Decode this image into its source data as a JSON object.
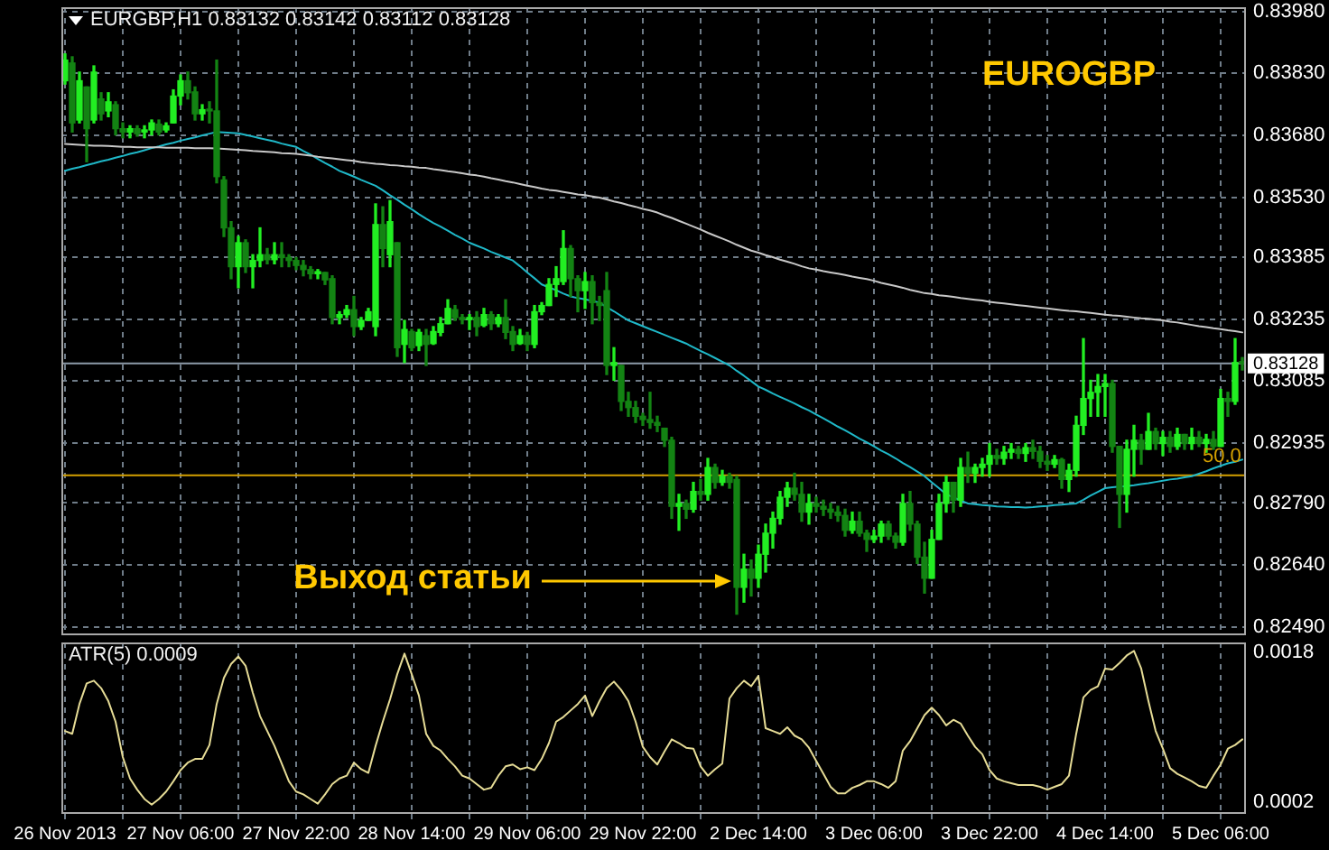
{
  "chart_data": [
    {
      "type": "candlestick",
      "title": "EURGBP,H1 0.83132 0.83142 0.83112 0.83128",
      "colors": [
        "#22ee22",
        "#138313",
        "#22ee22",
        "#138313",
        "#22ee22",
        "#138313",
        "#22ee22",
        "#138313",
        "#138313",
        "#22ee22",
        "#138313",
        "#22ee22",
        "#22ee22",
        "#138313",
        "#22ee22",
        "#22ee22",
        "#22ee22",
        "#138313",
        "#138313",
        "#22ee22",
        "#138313",
        "#138313",
        "#138313",
        "#138313",
        "#22ee22",
        "#138313",
        "#22ee22",
        "#22ee22",
        "#138313",
        "#22ee22",
        "#138313",
        "#138313",
        "#138313",
        "#138313",
        "#138313",
        "#22ee22",
        "#138313",
        "#138313",
        "#22ee22",
        "#22ee22",
        "#138313",
        "#22ee22",
        "#22ee22",
        "#22ee22",
        "#138313",
        "#22ee22",
        "#138313",
        "#22ee22",
        "#138313",
        "#22ee22",
        "#138313",
        "#22ee22",
        "#22ee22",
        "#22ee22",
        "#138313",
        "#138313",
        "#22ee22",
        "#138313",
        "#22ee22",
        "#138313",
        "#22ee22",
        "#138313",
        "#138313",
        "#22ee22",
        "#138313",
        "#22ee22",
        "#22ee22",
        "#22ee22",
        "#22ee22",
        "#22ee22",
        "#138313",
        "#138313",
        "#22ee22",
        "#138313",
        "#138313",
        "#138313",
        "#22ee22",
        "#138313",
        "#138313",
        "#138313",
        "#138313",
        "#138313",
        "#138313",
        "#138313",
        "#138313",
        "#22ee22",
        "#138313",
        "#22ee22",
        "#138313",
        "#22ee22",
        "#138313",
        "#22ee22",
        "#138313",
        "#138313",
        "#22ee22",
        "#138313",
        "#22ee22",
        "#22ee22",
        "#22ee22",
        "#22ee22",
        "#22ee22",
        "#138313",
        "#138313",
        "#22ee22",
        "#138313",
        "#138313",
        "#138313",
        "#138313",
        "#138313",
        "#22ee22",
        "#138313",
        "#138313",
        "#22ee22",
        "#22ee22",
        "#138313",
        "#138313",
        "#22ee22",
        "#138313",
        "#138313",
        "#138313",
        "#22ee22",
        "#22ee22",
        "#22ee22",
        "#138313",
        "#22ee22",
        "#138313",
        "#22ee22",
        "#22ee22",
        "#22ee22",
        "#138313",
        "#22ee22",
        "#22ee22",
        "#138313",
        "#22ee22",
        "#138313",
        "#138313",
        "#138313",
        "#22ee22",
        "#138313",
        "#22ee22",
        "#22ee22",
        "#22ee22",
        "#22ee22",
        "#22ee22",
        "#22ee22",
        "#138313",
        "#138313",
        "#22ee22",
        "#22ee22",
        "#138313",
        "#22ee22",
        "#138313",
        "#22ee22",
        "#138313",
        "#22ee22",
        "#138313",
        "#22ee22",
        "#138313",
        "#22ee22",
        "#138313",
        "#22ee22",
        "#138313",
        "#22ee22",
        "#138313"
      ],
      "categories": [
        null,
        null,
        null,
        null,
        null,
        null,
        null,
        null,
        null,
        null,
        null,
        null,
        null,
        null,
        null,
        null,
        null,
        null,
        null,
        null,
        null,
        null,
        null,
        null,
        null,
        null,
        null,
        null,
        null,
        null,
        null,
        null,
        null,
        null,
        null,
        null,
        null,
        null,
        null,
        null,
        null,
        null,
        null,
        null,
        null,
        null,
        null,
        null,
        null,
        null,
        null,
        null,
        null,
        null,
        null,
        null,
        null,
        null,
        null,
        null,
        null,
        null,
        null,
        null,
        null,
        null,
        null,
        null,
        null,
        null,
        null,
        null,
        null,
        null,
        null,
        null,
        null,
        null,
        null,
        null,
        null,
        null,
        null,
        null,
        null,
        null,
        null,
        null,
        null,
        null,
        null,
        null,
        null,
        null,
        null,
        null,
        null,
        null,
        null,
        null,
        null,
        null,
        null,
        null,
        null,
        null,
        null,
        null,
        null,
        null,
        null,
        null,
        null,
        null,
        null,
        null,
        null,
        null,
        null,
        null,
        null,
        null,
        null,
        null,
        null,
        null,
        null,
        null,
        null,
        null,
        null,
        null,
        null,
        null,
        null,
        null,
        null,
        null,
        null,
        null,
        null,
        null,
        null,
        null,
        null,
        null,
        null,
        null,
        null,
        null,
        null,
        null,
        null,
        null,
        null,
        null,
        null,
        null,
        null,
        null,
        null,
        null,
        null,
        null
      ],
      "ohlc": [
        [
          0.83812,
          0.83877,
          0.83804,
          0.83862
        ],
        [
          0.83855,
          0.8387,
          0.83688,
          0.8371
        ],
        [
          0.83717,
          0.83833,
          0.8371,
          0.83812
        ],
        [
          0.83797,
          0.83797,
          0.83616,
          0.83696
        ],
        [
          0.83717,
          0.83848,
          0.8371,
          0.83833
        ],
        [
          0.83768,
          0.83783,
          0.83717,
          0.83732
        ],
        [
          0.83739,
          0.83783,
          0.83725,
          0.83761
        ],
        [
          0.83754,
          0.83761,
          0.83681,
          0.83696
        ],
        [
          0.83696,
          0.8371,
          0.83674,
          0.83688
        ],
        [
          0.83688,
          0.83703,
          0.83674,
          0.83696
        ],
        [
          0.83696,
          0.83703,
          0.83678,
          0.83684
        ],
        [
          0.83688,
          0.83703,
          0.83674,
          0.83693
        ],
        [
          0.83693,
          0.83717,
          0.83681,
          0.8371
        ],
        [
          0.83707,
          0.83717,
          0.83681,
          0.83688
        ],
        [
          0.83693,
          0.8371,
          0.83688,
          0.83703
        ],
        [
          0.8371,
          0.8379,
          0.8371,
          0.83775
        ],
        [
          0.83775,
          0.83826,
          0.83754,
          0.83812
        ],
        [
          0.83812,
          0.83833,
          0.83768,
          0.83783
        ],
        [
          0.83785,
          0.83797,
          0.83717,
          0.83732
        ],
        [
          0.83732,
          0.83754,
          0.83717,
          0.83742
        ],
        [
          0.83742,
          0.83761,
          0.8371,
          0.83739
        ],
        [
          0.83739,
          0.83862,
          0.83565,
          0.8358
        ],
        [
          0.83572,
          0.8358,
          0.83435,
          0.83456
        ],
        [
          0.83456,
          0.83471,
          0.83333,
          0.83362
        ],
        [
          0.83362,
          0.83435,
          0.83311,
          0.8342
        ],
        [
          0.8342,
          0.83427,
          0.83348,
          0.83362
        ],
        [
          0.83362,
          0.83391,
          0.83311,
          0.83377
        ],
        [
          0.83377,
          0.83456,
          0.83362,
          0.83391
        ],
        [
          0.83391,
          0.83406,
          0.83369,
          0.83379
        ],
        [
          0.83379,
          0.8342,
          0.83369,
          0.83391
        ],
        [
          0.83391,
          0.8342,
          0.83362,
          0.83384
        ],
        [
          0.83384,
          0.83391,
          0.83362,
          0.83377
        ],
        [
          0.83377,
          0.83384,
          0.83355,
          0.83365
        ],
        [
          0.83365,
          0.83377,
          0.8334,
          0.83355
        ],
        [
          0.83355,
          0.83362,
          0.83333,
          0.83345
        ],
        [
          0.83345,
          0.83355,
          0.83333,
          0.8335
        ],
        [
          0.83348,
          0.83348,
          0.83319,
          0.8333
        ],
        [
          0.83333,
          0.8334,
          0.83224,
          0.83239
        ],
        [
          0.83239,
          0.83253,
          0.83224,
          0.83246
        ],
        [
          0.83246,
          0.83268,
          0.83239,
          0.83258
        ],
        [
          0.83258,
          0.8329,
          0.83195,
          0.83217
        ],
        [
          0.83217,
          0.83239,
          0.8321,
          0.83232
        ],
        [
          0.83232,
          0.83261,
          0.83232,
          0.83253
        ],
        [
          0.83217,
          0.83514,
          0.83195,
          0.83464
        ],
        [
          0.83464,
          0.83507,
          0.83362,
          0.83406
        ],
        [
          0.83391,
          0.83522,
          0.83362,
          0.83471
        ],
        [
          0.8342,
          0.8342,
          0.83145,
          0.83166
        ],
        [
          0.83174,
          0.83232,
          0.8313,
          0.8321
        ],
        [
          0.83205,
          0.8321,
          0.83159,
          0.83166
        ],
        [
          0.83171,
          0.8321,
          0.83159,
          0.83203
        ],
        [
          0.83195,
          0.8321,
          0.83123,
          0.83174
        ],
        [
          0.83176,
          0.83217,
          0.83174,
          0.83205
        ],
        [
          0.83203,
          0.83239,
          0.83195,
          0.83224
        ],
        [
          0.83224,
          0.83282,
          0.83224,
          0.83261
        ],
        [
          0.83258,
          0.83268,
          0.83232,
          0.83239
        ],
        [
          0.83239,
          0.83246,
          0.83224,
          0.83234
        ],
        [
          0.83234,
          0.83246,
          0.8321,
          0.83239
        ],
        [
          0.83239,
          0.83253,
          0.83195,
          0.83217
        ],
        [
          0.8322,
          0.83261,
          0.83217,
          0.83246
        ],
        [
          0.83246,
          0.83253,
          0.8321,
          0.83224
        ],
        [
          0.83224,
          0.83246,
          0.83217,
          0.83239
        ],
        [
          0.83239,
          0.83282,
          0.83188,
          0.83203
        ],
        [
          0.83205,
          0.83217,
          0.83159,
          0.83174
        ],
        [
          0.83176,
          0.8321,
          0.83174,
          0.83195
        ],
        [
          0.83195,
          0.83203,
          0.83159,
          0.83174
        ],
        [
          0.83174,
          0.83268,
          0.83166,
          0.83253
        ],
        [
          0.83253,
          0.83275,
          0.83246,
          0.83268
        ],
        [
          0.83268,
          0.83333,
          0.83268,
          0.83319
        ],
        [
          0.83319,
          0.83362,
          0.8329,
          0.83333
        ],
        [
          0.83326,
          0.83449,
          0.83319,
          0.83406
        ],
        [
          0.83406,
          0.83413,
          0.8329,
          0.83333
        ],
        [
          0.83333,
          0.8334,
          0.83253,
          0.83304
        ],
        [
          0.83304,
          0.83348,
          0.83261,
          0.83326
        ],
        [
          0.83326,
          0.8334,
          0.83224,
          0.83275
        ],
        [
          0.83275,
          0.8329,
          0.83232,
          0.83268
        ],
        [
          0.83304,
          0.83348,
          0.83101,
          0.83123
        ],
        [
          0.83123,
          0.83166,
          0.83087,
          0.8313
        ],
        [
          0.83123,
          0.83123,
          0.83014,
          0.83036
        ],
        [
          0.83036,
          0.83058,
          0.83,
          0.83021
        ],
        [
          0.83021,
          0.83036,
          0.82985,
          0.83
        ],
        [
          0.83,
          0.83007,
          0.82978,
          0.82992
        ],
        [
          0.82992,
          0.83058,
          0.82971,
          0.82985
        ],
        [
          0.82985,
          0.83,
          0.82963,
          0.82978
        ],
        [
          0.82971,
          0.82971,
          0.82927,
          0.82942
        ],
        [
          0.82942,
          0.82949,
          0.82753,
          0.82782
        ],
        [
          0.82782,
          0.82811,
          0.82724,
          0.82789
        ],
        [
          0.82789,
          0.82797,
          0.82753,
          0.82775
        ],
        [
          0.82775,
          0.8284,
          0.82768,
          0.82818
        ],
        [
          0.82818,
          0.82847,
          0.82797,
          0.82811
        ],
        [
          0.82811,
          0.82898,
          0.82797,
          0.82876
        ],
        [
          0.82876,
          0.82884,
          0.82826,
          0.8284
        ],
        [
          0.8284,
          0.82869,
          0.82833,
          0.82855
        ],
        [
          0.82855,
          0.82862,
          0.82826,
          0.8284
        ],
        [
          0.82847,
          0.82855,
          0.82521,
          0.82586
        ],
        [
          0.82586,
          0.82666,
          0.8255,
          0.8263
        ],
        [
          0.8263,
          0.82652,
          0.82565,
          0.82608
        ],
        [
          0.82608,
          0.82688,
          0.82586,
          0.82666
        ],
        [
          0.82666,
          0.82739,
          0.82623,
          0.82717
        ],
        [
          0.82717,
          0.82768,
          0.82681,
          0.82753
        ],
        [
          0.82753,
          0.82818,
          0.82739,
          0.82804
        ],
        [
          0.82804,
          0.8284,
          0.82782,
          0.82826
        ],
        [
          0.82826,
          0.82862,
          0.82797,
          0.82811
        ],
        [
          0.82811,
          0.8284,
          0.82746,
          0.82768
        ],
        [
          0.82768,
          0.82811,
          0.82739,
          0.82789
        ],
        [
          0.82789,
          0.82804,
          0.82768,
          0.82782
        ],
        [
          0.82782,
          0.82797,
          0.8276,
          0.82775
        ],
        [
          0.82775,
          0.82789,
          0.82753,
          0.82768
        ],
        [
          0.82768,
          0.82782,
          0.82746,
          0.8276
        ],
        [
          0.8276,
          0.82775,
          0.8271,
          0.82724
        ],
        [
          0.82724,
          0.82768,
          0.82717,
          0.82746
        ],
        [
          0.82746,
          0.82768,
          0.8271,
          0.82717
        ],
        [
          0.82717,
          0.82724,
          0.82673,
          0.82702
        ],
        [
          0.82702,
          0.82724,
          0.82695,
          0.8271
        ],
        [
          0.8271,
          0.82746,
          0.82695,
          0.82739
        ],
        [
          0.82739,
          0.82746,
          0.82702,
          0.8271
        ],
        [
          0.8271,
          0.82717,
          0.82681,
          0.82695
        ],
        [
          0.82695,
          0.82811,
          0.82688,
          0.82789
        ],
        [
          0.82789,
          0.82818,
          0.82724,
          0.82739
        ],
        [
          0.82739,
          0.82746,
          0.82644,
          0.82659
        ],
        [
          0.82659,
          0.82695,
          0.82572,
          0.82608
        ],
        [
          0.82608,
          0.82724,
          0.82608,
          0.82702
        ],
        [
          0.82702,
          0.82811,
          0.82702,
          0.82789
        ],
        [
          0.82789,
          0.82855,
          0.82768,
          0.8284
        ],
        [
          0.8284,
          0.8284,
          0.82768,
          0.82797
        ],
        [
          0.82797,
          0.82898,
          0.82782,
          0.82876
        ],
        [
          0.82876,
          0.82913,
          0.8284,
          0.82862
        ],
        [
          0.82862,
          0.82884,
          0.8284,
          0.82876
        ],
        [
          0.82876,
          0.82898,
          0.82855,
          0.82884
        ],
        [
          0.82884,
          0.82934,
          0.82855,
          0.82905
        ],
        [
          0.82905,
          0.8292,
          0.82884,
          0.82898
        ],
        [
          0.82898,
          0.82927,
          0.82884,
          0.82913
        ],
        [
          0.82913,
          0.82934,
          0.82898,
          0.8292
        ],
        [
          0.8292,
          0.82927,
          0.82898,
          0.8291
        ],
        [
          0.8291,
          0.82934,
          0.82891,
          0.82924
        ],
        [
          0.82924,
          0.82942,
          0.82898,
          0.82915
        ],
        [
          0.82915,
          0.82927,
          0.82876,
          0.82891
        ],
        [
          0.82891,
          0.82905,
          0.82869,
          0.82884
        ],
        [
          0.82884,
          0.82905,
          0.82876,
          0.82895
        ],
        [
          0.82895,
          0.82898,
          0.82826,
          0.82847
        ],
        [
          0.82847,
          0.82884,
          0.82818,
          0.82869
        ],
        [
          0.82869,
          0.83,
          0.82855,
          0.82978
        ],
        [
          0.82978,
          0.83188,
          0.82956,
          0.83043
        ],
        [
          0.83043,
          0.83087,
          0.83,
          0.83058
        ],
        [
          0.83058,
          0.83101,
          0.83,
          0.83072
        ],
        [
          0.83072,
          0.83101,
          0.83,
          0.83079
        ],
        [
          0.83079,
          0.83087,
          0.82913,
          0.82927
        ],
        [
          0.82927,
          0.82927,
          0.82731,
          0.82811
        ],
        [
          0.82811,
          0.82942,
          0.82768,
          0.8292
        ],
        [
          0.8292,
          0.82978,
          0.82855,
          0.82942
        ],
        [
          0.82942,
          0.82956,
          0.82884,
          0.8292
        ],
        [
          0.8292,
          0.83007,
          0.8292,
          0.82963
        ],
        [
          0.82963,
          0.82971,
          0.8292,
          0.82934
        ],
        [
          0.82934,
          0.82963,
          0.82905,
          0.82949
        ],
        [
          0.82949,
          0.82963,
          0.82913,
          0.82927
        ],
        [
          0.82927,
          0.82971,
          0.8292,
          0.82956
        ],
        [
          0.82956,
          0.82956,
          0.8292,
          0.82934
        ],
        [
          0.82934,
          0.82971,
          0.8292,
          0.82949
        ],
        [
          0.82949,
          0.82963,
          0.82927,
          0.82934
        ],
        [
          0.82934,
          0.82956,
          0.82913,
          0.82944
        ],
        [
          0.82944,
          0.82963,
          0.8292,
          0.82927
        ],
        [
          0.82927,
          0.83065,
          0.82927,
          0.83043
        ],
        [
          0.83043,
          0.83058,
          0.83,
          0.83036
        ],
        [
          0.83036,
          0.83188,
          0.83029,
          0.8313
        ],
        [
          0.83132,
          0.83142,
          0.83112,
          0.83128
        ]
      ],
      "series": [
        {
          "type": "line",
          "color": "#c8c8c8",
          "values": [
            0.83659,
            0.83658,
            0.83657,
            0.83656,
            0.83655,
            0.83655,
            0.83654,
            0.83653,
            0.83652,
            0.83652,
            0.83651,
            0.83651,
            0.83651,
            0.83651,
            0.8365,
            0.8365,
            0.8365,
            0.8365,
            0.83649,
            0.83649,
            0.83649,
            0.83648,
            0.83647,
            0.83646,
            0.83645,
            0.83644,
            0.83642,
            0.83641,
            0.8364,
            0.83639,
            0.83637,
            0.83636,
            0.83635,
            0.83633,
            0.83631,
            0.83628,
            0.83626,
            0.83624,
            0.83622,
            0.8362,
            0.83618,
            0.83615,
            0.83613,
            0.83611,
            0.8361,
            0.83608,
            0.83607,
            0.83605,
            0.83604,
            0.83602,
            0.83601,
            0.83598,
            0.83596,
            0.83593,
            0.83591,
            0.83588,
            0.83585,
            0.83583,
            0.8358,
            0.83576,
            0.83573,
            0.83569,
            0.83566,
            0.83562,
            0.83558,
            0.83555,
            0.83551,
            0.83548,
            0.83546,
            0.83543,
            0.8354,
            0.83537,
            0.83535,
            0.83532,
            0.83529,
            0.83525,
            0.8352,
            0.83516,
            0.83511,
            0.83507,
            0.83502,
            0.83498,
            0.83493,
            0.83486,
            0.8348,
            0.83473,
            0.83466,
            0.83459,
            0.83452,
            0.83444,
            0.83437,
            0.8343,
            0.83423,
            0.83415,
            0.83408,
            0.83401,
            0.83396,
            0.8339,
            0.83385,
            0.83379,
            0.83374,
            0.83369,
            0.83363,
            0.83358,
            0.83355,
            0.83351,
            0.83348,
            0.83345,
            0.83342,
            0.83338,
            0.83335,
            0.83332,
            0.83328,
            0.83323,
            0.83319,
            0.83315,
            0.83311,
            0.83306,
            0.83302,
            0.83298,
            0.83296,
            0.83293,
            0.83291,
            0.83289,
            0.83286,
            0.83284,
            0.83282,
            0.8328,
            0.83277,
            0.83275,
            0.83273,
            0.83271,
            0.83269,
            0.83267,
            0.83265,
            0.83263,
            0.83261,
            0.83259,
            0.83257,
            0.83255,
            0.83254,
            0.83252,
            0.8325,
            0.83248,
            0.83246,
            0.83244,
            0.83243,
            0.83241,
            0.83239,
            0.83237,
            0.83236,
            0.83234,
            0.83232,
            0.83229,
            0.83227,
            0.83224,
            0.83221,
            0.83218,
            0.83216,
            0.83213,
            0.83211,
            0.83208,
            0.83206,
            0.83203
          ]
        },
        {
          "type": "line",
          "color": "#1fb8c8",
          "values": [
            0.83594,
            0.83599,
            0.83603,
            0.83608,
            0.83612,
            0.83617,
            0.83621,
            0.83626,
            0.8363,
            0.83635,
            0.83639,
            0.83644,
            0.83649,
            0.83653,
            0.83658,
            0.83662,
            0.83667,
            0.83671,
            0.83675,
            0.8368,
            0.83684,
            0.83688,
            0.83687,
            0.83686,
            0.83685,
            0.83681,
            0.83677,
            0.83673,
            0.83669,
            0.83665,
            0.8366,
            0.83656,
            0.83652,
            0.83642,
            0.83633,
            0.83623,
            0.83613,
            0.83604,
            0.83594,
            0.83587,
            0.8358,
            0.83572,
            0.83565,
            0.83558,
            0.83547,
            0.83535,
            0.83524,
            0.83512,
            0.83501,
            0.83489,
            0.83478,
            0.83468,
            0.83459,
            0.83449,
            0.83439,
            0.8343,
            0.8342,
            0.83413,
            0.83406,
            0.83398,
            0.83391,
            0.83384,
            0.83377,
            0.83363,
            0.83348,
            0.83334,
            0.83319,
            0.83312,
            0.83305,
            0.83297,
            0.8329,
            0.83286,
            0.83283,
            0.83279,
            0.83275,
            0.83264,
            0.83254,
            0.83243,
            0.83232,
            0.83225,
            0.83218,
            0.83211,
            0.83204,
            0.83197,
            0.8319,
            0.83183,
            0.83176,
            0.83167,
            0.83158,
            0.8315,
            0.83141,
            0.83132,
            0.83123,
            0.8311,
            0.83098,
            0.83085,
            0.83072,
            0.83064,
            0.83055,
            0.83047,
            0.83039,
            0.83031,
            0.83022,
            0.83014,
            0.83004,
            0.82995,
            0.82985,
            0.82975,
            0.82966,
            0.82956,
            0.82946,
            0.82937,
            0.82927,
            0.82917,
            0.82908,
            0.82898,
            0.82887,
            0.82877,
            0.82866,
            0.82855,
            0.8284,
            0.82826,
            0.82811,
            0.82804,
            0.82796,
            0.82789,
            0.82787,
            0.82785,
            0.82784,
            0.82782,
            0.82781,
            0.8278,
            0.8278,
            0.82779,
            0.8278,
            0.82782,
            0.82783,
            0.82785,
            0.82786,
            0.82788,
            0.82789,
            0.82798,
            0.82808,
            0.82817,
            0.82826,
            0.82828,
            0.8283,
            0.82831,
            0.82833,
            0.82836,
            0.82838,
            0.82841,
            0.82844,
            0.82847,
            0.82849,
            0.82852,
            0.82855,
            0.82861,
            0.82867,
            0.82874,
            0.8288,
            0.82886,
            0.8289,
            0.82895
          ]
        }
      ],
      "ylim": [
        0.8247,
        0.8399
      ],
      "yticks": [
        {
          "value": 0.8398,
          "label": "0.83980"
        },
        {
          "value": 0.8383,
          "label": "0.83830"
        },
        {
          "value": 0.8368,
          "label": "0.83680"
        },
        {
          "value": 0.8353,
          "label": "0.83530"
        },
        0.83385,
        0.83235,
        0.83085,
        0.82935,
        {
          "value": 0.8279,
          "label": "0.82790"
        },
        {
          "value": 0.8264,
          "label": "0.82640"
        },
        {
          "value": 0.8249,
          "label": "0.82490"
        }
      ],
      "grid": true,
      "tick_labels": "y",
      "ref_lines": [
        {
          "axis": "y",
          "value": 0.83128,
          "label": "0.83128",
          "color": "#8c9aa8"
        },
        {
          "axis": "y",
          "value": 0.82857,
          "color": "#d4a000"
        }
      ],
      "annotations": [
        "EUROGBP",
        "Выход статьи",
        {
          "text": "50.0",
          "y": 0.82857
        }
      ]
    },
    {
      "type": "line",
      "title": "ATR(5) 0.0009",
      "categories": [
        "26 Nov 2013",
        null,
        null,
        null,
        null,
        null,
        null,
        null,
        null,
        null,
        null,
        null,
        null,
        null,
        null,
        null,
        "27 Nov 06:00",
        null,
        null,
        null,
        null,
        null,
        null,
        null,
        null,
        null,
        null,
        null,
        null,
        null,
        null,
        null,
        "27 Nov 22:00",
        null,
        null,
        null,
        null,
        null,
        null,
        null,
        null,
        null,
        null,
        null,
        null,
        null,
        null,
        null,
        "28 Nov 14:00",
        null,
        null,
        null,
        null,
        null,
        null,
        null,
        null,
        null,
        null,
        null,
        null,
        null,
        null,
        null,
        "29 Nov 06:00",
        null,
        null,
        null,
        null,
        null,
        null,
        null,
        null,
        null,
        null,
        null,
        null,
        null,
        null,
        null,
        "29 Nov 22:00",
        null,
        null,
        null,
        null,
        null,
        null,
        null,
        null,
        null,
        null,
        null,
        null,
        null,
        null,
        null,
        "2 Dec 14:00",
        null,
        null,
        null,
        null,
        null,
        null,
        null,
        null,
        null,
        null,
        null,
        null,
        null,
        null,
        null,
        "3 Dec 06:00",
        null,
        null,
        null,
        null,
        null,
        null,
        null,
        null,
        null,
        null,
        null,
        null,
        null,
        null,
        null,
        "3 Dec 22:00",
        null,
        null,
        null,
        null,
        null,
        null,
        null,
        null,
        null,
        null,
        null,
        null,
        null,
        null,
        null,
        "4 Dec 14:00",
        null,
        null,
        null,
        null,
        null,
        null,
        null,
        null,
        null,
        null,
        null,
        null,
        null,
        null,
        null,
        "5 Dec 06:00",
        null,
        null,
        null
      ],
      "series": [
        {
          "color": "#e6dc96",
          "values": [
            0.00096,
            0.00093,
            0.00125,
            0.00147,
            0.0015,
            0.00142,
            0.00128,
            0.00106,
            0.00068,
            0.00045,
            0.00033,
            0.00023,
            0.00017,
            0.00023,
            0.00031,
            0.00042,
            0.00054,
            0.00062,
            0.00066,
            0.00066,
            0.00081,
            0.00125,
            0.00153,
            0.00168,
            0.00176,
            0.00166,
            0.00137,
            0.00112,
            0.00096,
            0.0008,
            0.00061,
            0.00042,
            0.00031,
            0.00028,
            0.00023,
            0.00018,
            0.00028,
            0.00039,
            0.00045,
            0.00048,
            0.00062,
            0.00055,
            0.00051,
            0.0008,
            0.00106,
            0.0013,
            0.00157,
            0.00179,
            0.00157,
            0.00134,
            0.00093,
            0.0008,
            0.00075,
            0.00066,
            0.00058,
            0.00048,
            0.00045,
            0.00039,
            0.00033,
            0.00035,
            0.00048,
            0.00058,
            0.0006,
            0.00055,
            0.00057,
            0.00054,
            0.00066,
            0.00083,
            0.00106,
            0.00111,
            0.00118,
            0.00125,
            0.00134,
            0.00112,
            0.00128,
            0.00142,
            0.00149,
            0.0014,
            0.00128,
            0.00106,
            0.00079,
            0.00068,
            0.0006,
            0.00074,
            0.00087,
            0.00083,
            0.00078,
            0.00077,
            0.00058,
            0.00048,
            0.00055,
            0.00061,
            0.00131,
            0.00142,
            0.0015,
            0.00144,
            0.00155,
            0.00099,
            0.00096,
            0.00093,
            0.001,
            0.00091,
            0.00087,
            0.00078,
            0.00064,
            0.0005,
            0.00036,
            0.00029,
            0.00029,
            0.00035,
            0.00038,
            0.00042,
            0.00042,
            0.00039,
            0.00035,
            0.00042,
            0.00075,
            0.00085,
            0.00099,
            0.00113,
            0.00121,
            0.00113,
            0.00102,
            0.00108,
            0.00104,
            0.00091,
            0.00079,
            0.00071,
            0.00054,
            0.00045,
            0.00042,
            0.0004,
            0.00038,
            0.00038,
            0.00038,
            0.00036,
            0.00033,
            0.00036,
            0.00039,
            0.00048,
            0.00093,
            0.00132,
            0.0014,
            0.00144,
            0.00163,
            0.00162,
            0.00169,
            0.00177,
            0.00182,
            0.00163,
            0.00128,
            0.00096,
            0.00077,
            0.00056,
            0.0005,
            0.00046,
            0.00042,
            0.00037,
            0.00035,
            0.00048,
            0.0006,
            0.00077,
            0.00081,
            0.00087
          ]
        }
      ],
      "ylim": [
        7e-05,
        0.00191
      ],
      "yticks": [
        0.0018,
        0.0002
      ],
      "grid": "x"
    }
  ]
}
